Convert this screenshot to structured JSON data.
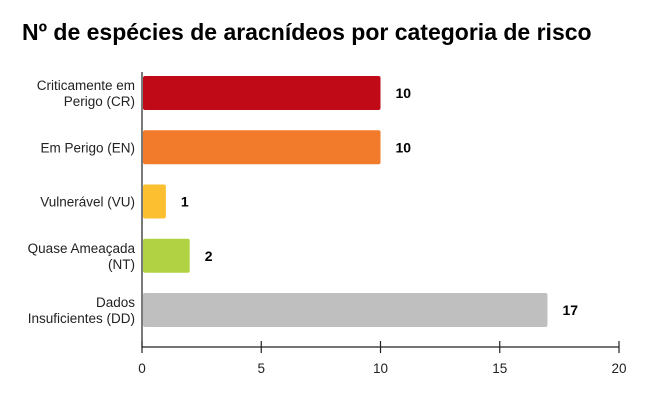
{
  "chart_data": {
    "type": "bar",
    "orientation": "horizontal",
    "title": "Nº de espécies de aracnídeos por categoria de risco",
    "xlabel": "",
    "ylabel": "",
    "categories": [
      [
        "Criticamente em",
        "Perigo (CR)"
      ],
      [
        "Em Perigo (EN)"
      ],
      [
        "Vulnerável (VU)"
      ],
      [
        "Quase Ameaçada",
        "(NT)"
      ],
      [
        "Dados",
        "Insuficientes (DD)"
      ]
    ],
    "values": [
      10,
      10,
      1,
      2,
      17
    ],
    "data_labels": [
      "10",
      "10",
      "1",
      "2",
      "17"
    ],
    "colors": [
      "#c00a17",
      "#f27a2b",
      "#fbbf2f",
      "#b0d243",
      "#bfbfbf"
    ],
    "xlim": [
      0,
      20
    ],
    "xticks": [
      0,
      5,
      10,
      15,
      20
    ],
    "xtick_labels": [
      "0",
      "5",
      "10",
      "15",
      "20"
    ],
    "grid": false,
    "legend": "none"
  }
}
